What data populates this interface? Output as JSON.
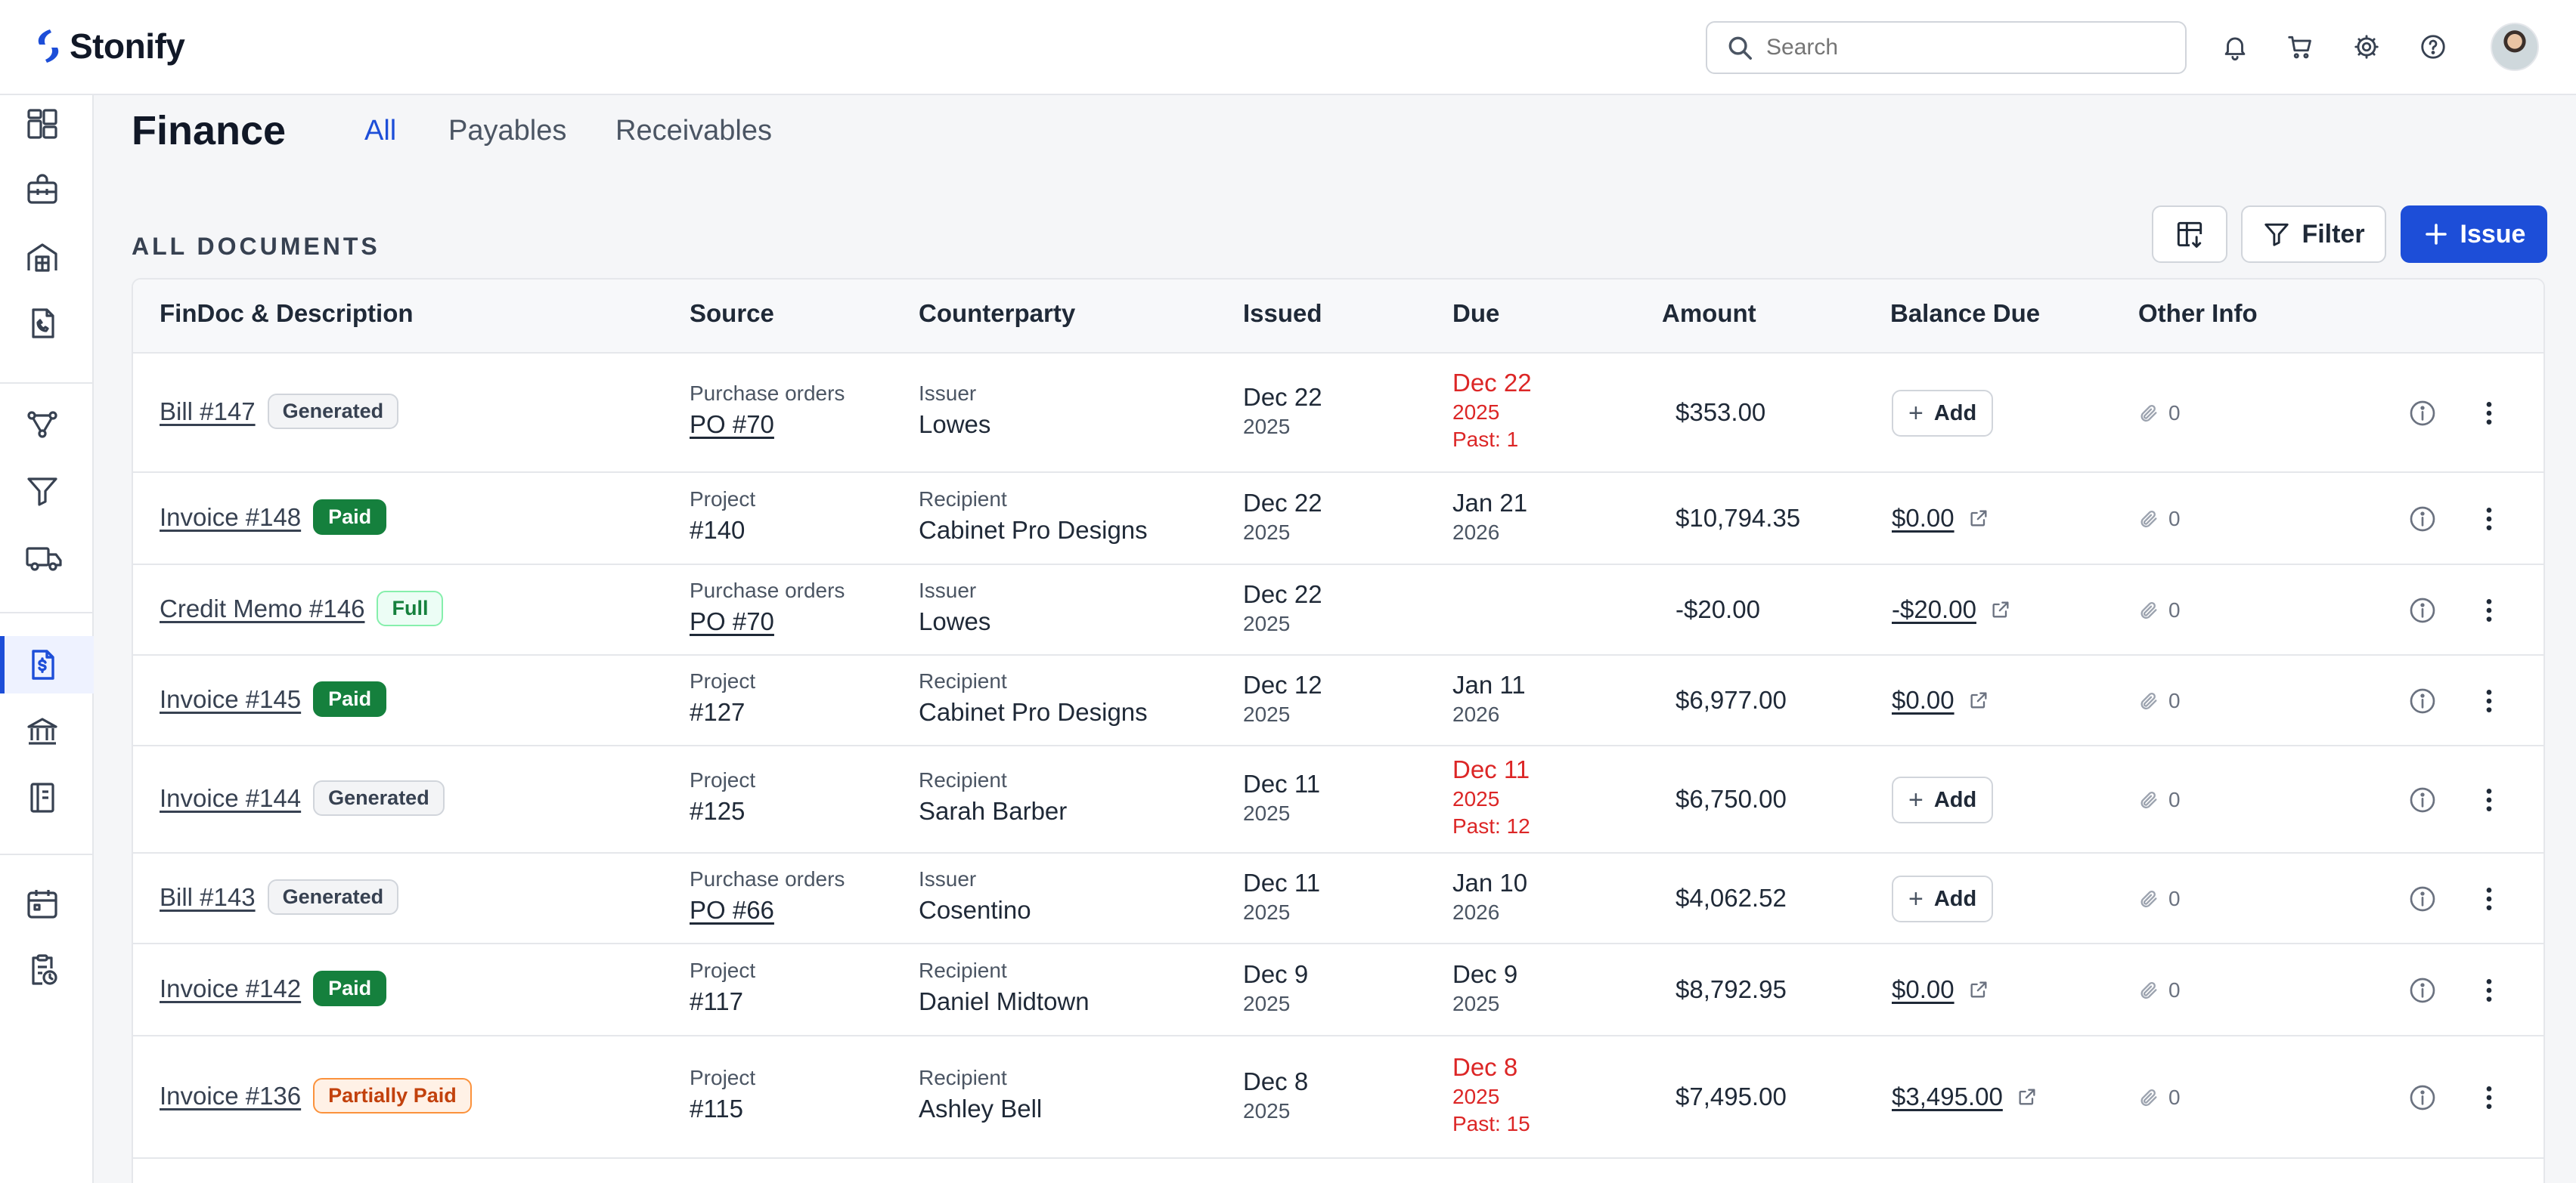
{
  "app": {
    "name": "Stonify"
  },
  "search": {
    "placeholder": "Search"
  },
  "header_icons": [
    "bell-icon",
    "cart-icon",
    "gear-icon",
    "help-icon"
  ],
  "sidebar": {
    "items": [
      {
        "icon": "dashboard-icon"
      },
      {
        "icon": "toolbox-icon"
      },
      {
        "icon": "building-icon"
      },
      {
        "icon": "phone-document-icon"
      },
      {
        "icon": "workflow-icon"
      },
      {
        "icon": "funnel-icon"
      },
      {
        "icon": "truck-icon"
      },
      {
        "icon": "invoice-dollar-icon",
        "active": true
      },
      {
        "icon": "bank-icon"
      },
      {
        "icon": "ledger-icon"
      },
      {
        "icon": "calendar-icon"
      },
      {
        "icon": "clipboard-clock-icon"
      }
    ]
  },
  "page": {
    "title": "Finance",
    "tabs": [
      {
        "label": "All",
        "active": true
      },
      {
        "label": "Payables",
        "active": false
      },
      {
        "label": "Receivables",
        "active": false
      }
    ],
    "section_title": "ALL DOCUMENTS",
    "filter_label": "Filter",
    "issue_label": "Issue"
  },
  "table": {
    "headers": {
      "doc": "FinDoc & Description",
      "source": "Source",
      "counterparty": "Counterparty",
      "issued": "Issued",
      "due": "Due",
      "amount": "Amount",
      "balance": "Balance Due",
      "other": "Other Info"
    },
    "rows": [
      {
        "doc": "Bill #147",
        "badge": "Generated",
        "badge_type": "generated",
        "source_type": "Purchase orders",
        "source_ref": "PO #70",
        "source_link": true,
        "cp_role": "Issuer",
        "cp_name": "Lowes",
        "issued_date": "Dec 22",
        "issued_year": "2025",
        "due_date": "Dec 22",
        "due_year": "2025",
        "due_past": "Past: 1",
        "overdue": true,
        "amount": "$353.00",
        "balance_action": "Add",
        "balance_value": "",
        "attachments": "0"
      },
      {
        "doc": "Invoice #148",
        "badge": "Paid",
        "badge_type": "paid",
        "source_type": "Project",
        "source_ref": "#140",
        "source_link": false,
        "cp_role": "Recipient",
        "cp_name": "Cabinet Pro Designs",
        "issued_date": "Dec 22",
        "issued_year": "2025",
        "due_date": "Jan 21",
        "due_year": "2026",
        "due_past": "",
        "overdue": false,
        "amount": "$10,794.35",
        "balance_action": "",
        "balance_value": "$0.00",
        "attachments": "0"
      },
      {
        "doc": "Credit Memo #146",
        "badge": "Full",
        "badge_type": "full",
        "source_type": "Purchase orders",
        "source_ref": "PO #70",
        "source_link": true,
        "cp_role": "Issuer",
        "cp_name": "Lowes",
        "issued_date": "Dec 22",
        "issued_year": "2025",
        "due_date": "",
        "due_year": "",
        "due_past": "",
        "overdue": false,
        "amount": "-$20.00",
        "balance_action": "",
        "balance_value": "-$20.00",
        "attachments": "0"
      },
      {
        "doc": "Invoice #145",
        "badge": "Paid",
        "badge_type": "paid",
        "source_type": "Project",
        "source_ref": "#127",
        "source_link": false,
        "cp_role": "Recipient",
        "cp_name": "Cabinet Pro Designs",
        "issued_date": "Dec 12",
        "issued_year": "2025",
        "due_date": "Jan 11",
        "due_year": "2026",
        "due_past": "",
        "overdue": false,
        "amount": "$6,977.00",
        "balance_action": "",
        "balance_value": "$0.00",
        "attachments": "0"
      },
      {
        "doc": "Invoice #144",
        "badge": "Generated",
        "badge_type": "generated",
        "source_type": "Project",
        "source_ref": "#125",
        "source_link": false,
        "cp_role": "Recipient",
        "cp_name": "Sarah Barber",
        "issued_date": "Dec 11",
        "issued_year": "2025",
        "due_date": "Dec 11",
        "due_year": "2025",
        "due_past": "Past: 12",
        "overdue": true,
        "amount": "$6,750.00",
        "balance_action": "Add",
        "balance_value": "",
        "attachments": "0"
      },
      {
        "doc": "Bill #143",
        "badge": "Generated",
        "badge_type": "generated",
        "source_type": "Purchase orders",
        "source_ref": "PO #66",
        "source_link": true,
        "cp_role": "Issuer",
        "cp_name": "Cosentino",
        "issued_date": "Dec 11",
        "issued_year": "2025",
        "due_date": "Jan 10",
        "due_year": "2026",
        "due_past": "",
        "overdue": false,
        "amount": "$4,062.52",
        "balance_action": "Add",
        "balance_value": "",
        "attachments": "0"
      },
      {
        "doc": "Invoice #142",
        "badge": "Paid",
        "badge_type": "paid",
        "source_type": "Project",
        "source_ref": "#117",
        "source_link": false,
        "cp_role": "Recipient",
        "cp_name": "Daniel Midtown",
        "issued_date": "Dec 9",
        "issued_year": "2025",
        "due_date": "Dec 9",
        "due_year": "2025",
        "due_past": "",
        "overdue": false,
        "amount": "$8,792.95",
        "balance_action": "",
        "balance_value": "$0.00",
        "attachments": "0"
      },
      {
        "doc": "Invoice #136",
        "badge": "Partially Paid",
        "badge_type": "partial",
        "source_type": "Project",
        "source_ref": "#115",
        "source_link": false,
        "cp_role": "Recipient",
        "cp_name": "Ashley Bell",
        "issued_date": "Dec 8",
        "issued_year": "2025",
        "due_date": "Dec 8",
        "due_year": "2025",
        "due_past": "Past: 15",
        "overdue": true,
        "amount": "$7,495.00",
        "balance_action": "",
        "balance_value": "$3,495.00",
        "attachments": "0"
      }
    ]
  }
}
